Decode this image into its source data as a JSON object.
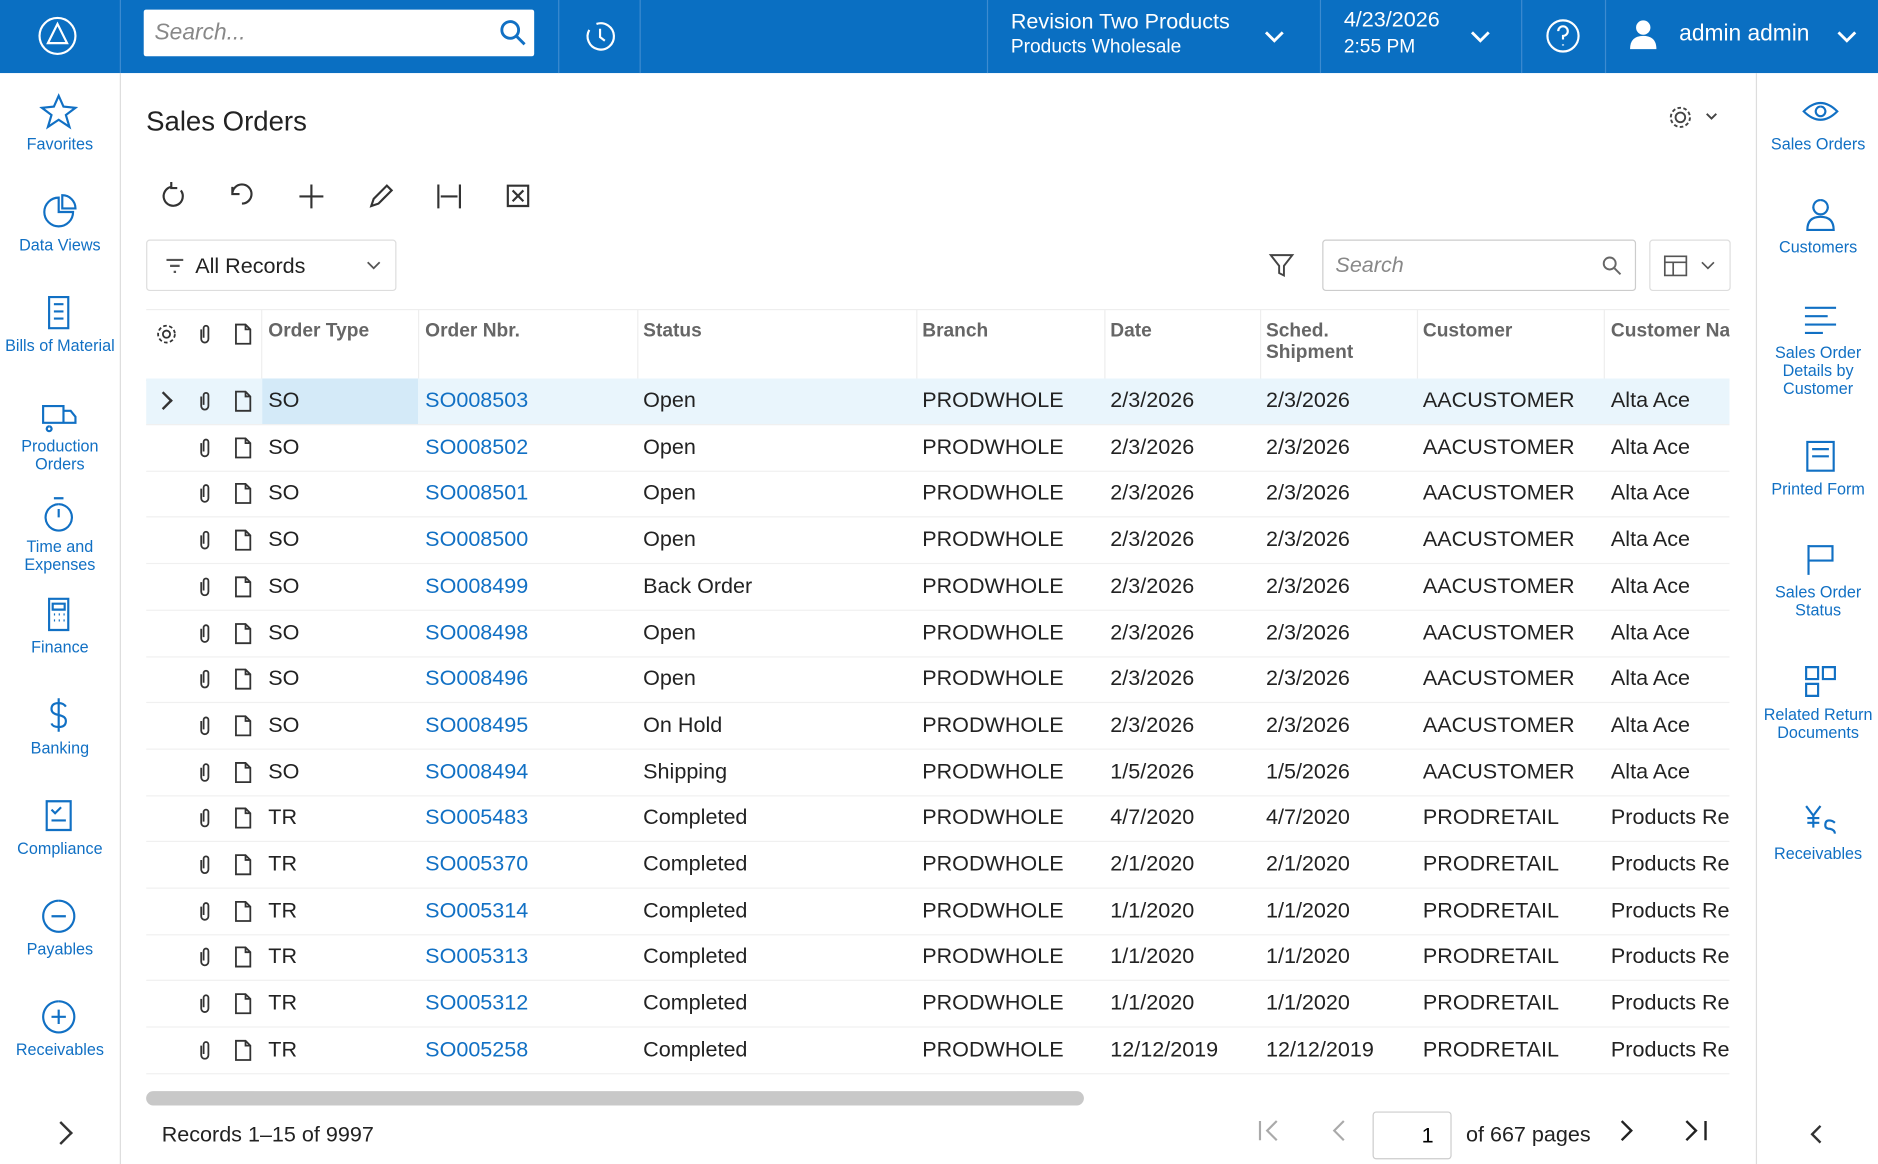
{
  "header": {
    "search_placeholder": "Search...",
    "company": "Revision Two Products",
    "branch": "Products Wholesale",
    "date": "4/23/2026",
    "time": "2:55 PM",
    "user": "admin admin"
  },
  "left_nav": [
    "Favorites",
    "Data Views",
    "Bills of Material",
    "Production Orders",
    "Time and Expenses",
    "Finance",
    "Banking",
    "Compliance",
    "Payables",
    "Receivables"
  ],
  "page": {
    "title": "Sales Orders",
    "filter": "All Records",
    "search_placeholder": "Search"
  },
  "right_nav": [
    "Sales Orders",
    "Customers",
    "Sales Order Details by Customer",
    "Printed Form",
    "Sales Order Status",
    "Related Return Documents",
    "Receivables"
  ],
  "table": {
    "columns": [
      "Order Type",
      "Order Nbr.",
      "Status",
      "Branch",
      "Date",
      "Sched. Shipment",
      "Customer",
      "Customer Na"
    ],
    "rows": [
      [
        "SO",
        "SO008503",
        "Open",
        "PRODWHOLE",
        "2/3/2026",
        "2/3/2026",
        "AACUSTOMER",
        "Alta Ace"
      ],
      [
        "SO",
        "SO008502",
        "Open",
        "PRODWHOLE",
        "2/3/2026",
        "2/3/2026",
        "AACUSTOMER",
        "Alta Ace"
      ],
      [
        "SO",
        "SO008501",
        "Open",
        "PRODWHOLE",
        "2/3/2026",
        "2/3/2026",
        "AACUSTOMER",
        "Alta Ace"
      ],
      [
        "SO",
        "SO008500",
        "Open",
        "PRODWHOLE",
        "2/3/2026",
        "2/3/2026",
        "AACUSTOMER",
        "Alta Ace"
      ],
      [
        "SO",
        "SO008499",
        "Back Order",
        "PRODWHOLE",
        "2/3/2026",
        "2/3/2026",
        "AACUSTOMER",
        "Alta Ace"
      ],
      [
        "SO",
        "SO008498",
        "Open",
        "PRODWHOLE",
        "2/3/2026",
        "2/3/2026",
        "AACUSTOMER",
        "Alta Ace"
      ],
      [
        "SO",
        "SO008496",
        "Open",
        "PRODWHOLE",
        "2/3/2026",
        "2/3/2026",
        "AACUSTOMER",
        "Alta Ace"
      ],
      [
        "SO",
        "SO008495",
        "On Hold",
        "PRODWHOLE",
        "2/3/2026",
        "2/3/2026",
        "AACUSTOMER",
        "Alta Ace"
      ],
      [
        "SO",
        "SO008494",
        "Shipping",
        "PRODWHOLE",
        "1/5/2026",
        "1/5/2026",
        "AACUSTOMER",
        "Alta Ace"
      ],
      [
        "TR",
        "SO005483",
        "Completed",
        "PRODWHOLE",
        "4/7/2020",
        "4/7/2020",
        "PRODRETAIL",
        "Products Re"
      ],
      [
        "TR",
        "SO005370",
        "Completed",
        "PRODWHOLE",
        "2/1/2020",
        "2/1/2020",
        "PRODRETAIL",
        "Products Re"
      ],
      [
        "TR",
        "SO005314",
        "Completed",
        "PRODWHOLE",
        "1/1/2020",
        "1/1/2020",
        "PRODRETAIL",
        "Products Re"
      ],
      [
        "TR",
        "SO005313",
        "Completed",
        "PRODWHOLE",
        "1/1/2020",
        "1/1/2020",
        "PRODRETAIL",
        "Products Re"
      ],
      [
        "TR",
        "SO005312",
        "Completed",
        "PRODWHOLE",
        "1/1/2020",
        "1/1/2020",
        "PRODRETAIL",
        "Products Re"
      ],
      [
        "TR",
        "SO005258",
        "Completed",
        "PRODWHOLE",
        "12/12/2019",
        "12/12/2019",
        "PRODRETAIL",
        "Products Re"
      ]
    ]
  },
  "footer": {
    "records": "Records 1–15 of 9997",
    "page": "1",
    "pages": "of 667 pages"
  }
}
